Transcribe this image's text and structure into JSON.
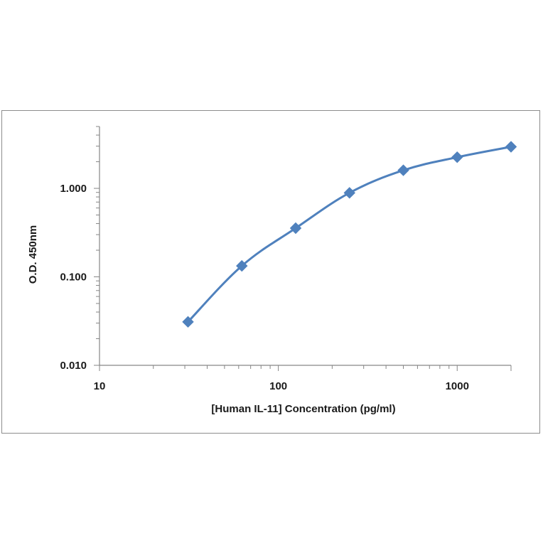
{
  "chart_data": {
    "type": "line",
    "xlabel": "[Human IL-11]  Concentration (pg/ml)",
    "ylabel": "O.D. 450nm",
    "x_scale": "log",
    "y_scale": "log",
    "xlim": [
      10,
      2000
    ],
    "ylim": [
      0.01,
      5
    ],
    "x_ticks": [
      {
        "value": 10,
        "label": "10"
      },
      {
        "value": 100,
        "label": "100"
      },
      {
        "value": 1000,
        "label": "1000"
      }
    ],
    "y_ticks": [
      {
        "value": 0.01,
        "label": "0.010"
      },
      {
        "value": 0.1,
        "label": "0.100"
      },
      {
        "value": 1,
        "label": "1.000"
      }
    ],
    "grid": false,
    "legend": "none",
    "marker": "diamond",
    "series": [
      {
        "x": [
          31.25,
          62.5,
          125,
          250,
          500,
          1000,
          2000
        ],
        "y": [
          0.031,
          0.133,
          0.355,
          0.89,
          1.6,
          2.25,
          2.95
        ]
      }
    ],
    "colors": {
      "line": "#4f81bd",
      "marker": "#4f81bd",
      "axis": "#868686"
    }
  }
}
